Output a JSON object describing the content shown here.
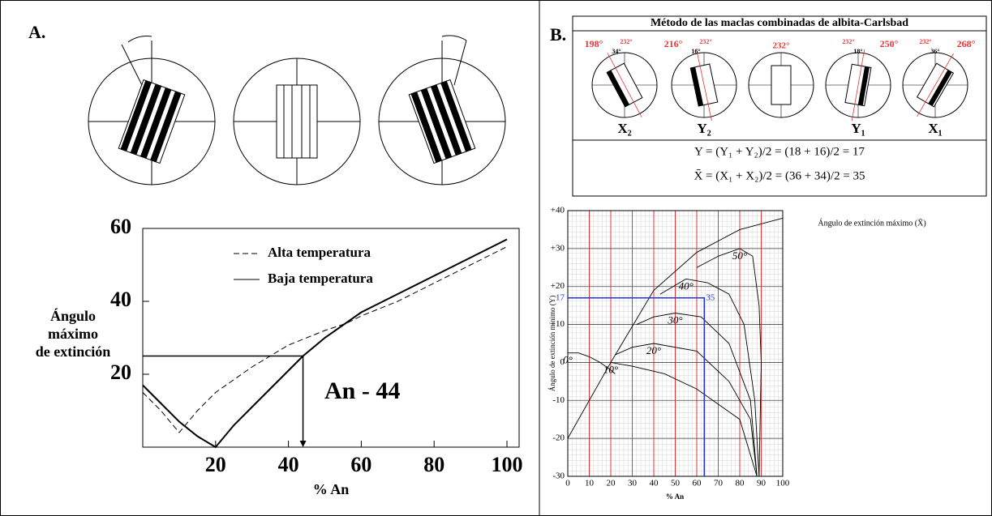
{
  "panel_labels": [
    "A.",
    "B."
  ],
  "diagram_b": {
    "title": "Método de las maclas combinadas de albita-Carlsbad",
    "crystals": [
      {
        "label": "X₂",
        "angles": [
          "198°",
          "232°",
          "34°"
        ]
      },
      {
        "label": "Y₂",
        "angles": [
          "216°",
          "232°",
          "16°"
        ]
      },
      {
        "label": "",
        "angles": [
          "232°"
        ]
      },
      {
        "label": "Y₁",
        "angles": [
          "250°",
          "232°",
          "18°"
        ]
      },
      {
        "label": "X₁",
        "angles": [
          "268°",
          "232°",
          "36°"
        ]
      }
    ],
    "formulas": [
      "Y = (Y₁ + Y₂)/2 = (18 + 16)/2 = 17",
      "X̄ = (X₁ + X₂)/2 = (36 + 34)/2 = 35"
    ]
  },
  "chart_data": [
    {
      "type": "line",
      "xlabel": "% An",
      "ylabel": [
        "Ángulo",
        "máximo",
        "de extinción"
      ],
      "xlim": [
        0,
        100
      ],
      "ylim": [
        0,
        60
      ],
      "xticks": [
        20,
        40,
        60,
        80,
        100
      ],
      "yticks": [
        20,
        40,
        60
      ],
      "series": [
        {
          "name": "Alta temperatura",
          "color": "#000",
          "dashed": true,
          "x": [
            0,
            5,
            10,
            15,
            20,
            30,
            40,
            50,
            56,
            60,
            70,
            80,
            90,
            100
          ],
          "values": [
            15,
            10,
            4,
            10,
            15,
            22,
            28,
            32,
            34,
            36,
            40,
            45,
            50,
            55
          ]
        },
        {
          "name": "Baja temperatura",
          "color": "#000",
          "dashed": false,
          "x": [
            0,
            5,
            10,
            15,
            20,
            25,
            30,
            35,
            40,
            44,
            50,
            60,
            70,
            80,
            90,
            100
          ],
          "values": [
            17,
            12,
            7,
            3,
            0,
            6,
            11,
            16,
            21,
            25,
            30,
            37,
            42,
            47,
            52,
            57
          ]
        }
      ],
      "annotation": {
        "text": "An - 44",
        "x": 44,
        "y": 25
      }
    },
    {
      "type": "line",
      "xlabel": "% An",
      "ylabel": "Ángulo de extinción mínimo (Y)",
      "note": "Ángulo de extinción máximo (X̄)",
      "xlim": [
        0,
        100
      ],
      "ylim": [
        -30,
        40
      ],
      "xticks": [
        0,
        10,
        20,
        30,
        40,
        50,
        60,
        70,
        80,
        90,
        100
      ],
      "yticks": [
        -30,
        -20,
        -10,
        0,
        {
          "value": 10,
          "label": "+10"
        },
        {
          "value": 20,
          "label": "+20"
        },
        {
          "value": 30,
          "label": "+30"
        },
        {
          "value": 40,
          "label": "+40"
        }
      ],
      "xgrid_color": "#e33",
      "ygrid_color": "#444",
      "series": [
        {
          "color": "#000",
          "x": [
            0,
            20,
            40,
            60,
            80,
            100
          ],
          "values": [
            -20,
            0,
            19,
            29,
            35,
            38
          ]
        },
        {
          "name": "0°",
          "color": "#000",
          "x": [
            0,
            5,
            10,
            15,
            20,
            22
          ],
          "values": [
            2.5,
            2.5,
            1.5,
            0,
            -2,
            -3
          ]
        },
        {
          "name": "10°",
          "color": "#000",
          "x": [
            20,
            30,
            45,
            60,
            80,
            88
          ],
          "values": [
            0,
            -1,
            -3,
            -7,
            -15,
            -30
          ]
        },
        {
          "name": "20°",
          "color": "#000",
          "x": [
            22,
            30,
            40,
            60,
            75,
            85,
            88
          ],
          "values": [
            2,
            4,
            5,
            3,
            -5,
            -15,
            -30
          ]
        },
        {
          "name": "30°",
          "color": "#000",
          "x": [
            32,
            40,
            50,
            62,
            75,
            85,
            88
          ],
          "values": [
            10,
            12,
            13,
            12,
            5,
            -10,
            -30
          ]
        },
        {
          "name": "40°",
          "color": "#000",
          "x": [
            43,
            55,
            65,
            75,
            82,
            87,
            89
          ],
          "values": [
            18,
            22,
            21,
            18,
            10,
            -10,
            -30
          ]
        },
        {
          "name": "50°",
          "color": "#000",
          "x": [
            60,
            70,
            80,
            86,
            89,
            90,
            89
          ],
          "values": [
            25,
            28,
            30,
            28,
            15,
            0,
            -30
          ]
        }
      ],
      "guide": {
        "x": 63.5,
        "y": 17,
        "curve": 35,
        "color": "#2233dd"
      }
    }
  ]
}
